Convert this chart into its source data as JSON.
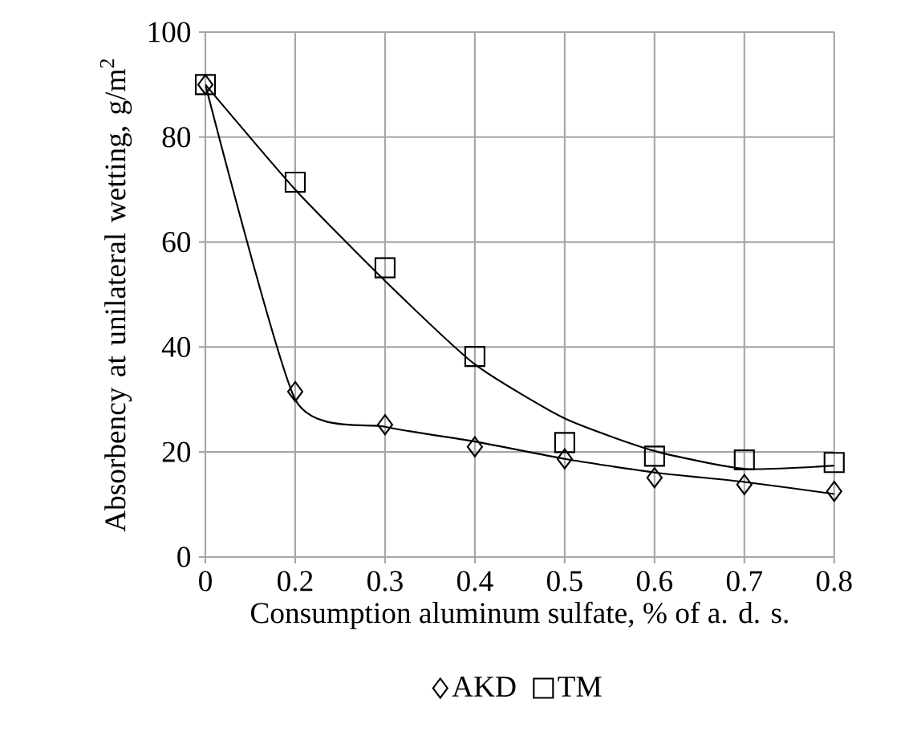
{
  "chart_data": {
    "type": "scatter",
    "xlabel": "Consumption aluminum sulfate, % of a. d. s.",
    "ylabel": "Absorbency at unilateral wetting, g/m$^{2}$",
    "categories": [
      "0",
      "0.2",
      "0.3",
      "0.4",
      "0.5",
      "0.6",
      "0.7",
      "0.8"
    ],
    "ylim": [
      0,
      100
    ],
    "yticks": [
      0,
      20,
      40,
      60,
      80,
      100
    ],
    "grid": true,
    "legend": "bottom",
    "series": [
      {
        "name": "AKD",
        "marker": "diamond",
        "color": "#000000",
        "values": [
          90,
          31.5,
          25.2,
          21.0,
          18.7,
          15.1,
          13.8,
          12.5
        ]
      },
      {
        "name": "TM",
        "marker": "square",
        "color": "#000000",
        "values": [
          90,
          71.4,
          55.1,
          38.2,
          21.8,
          19.2,
          18.5,
          18.0
        ]
      },
      {
        "type": "line",
        "color": "#000000",
        "values": [
          90,
          30,
          24.8,
          22,
          18.7,
          16.1,
          14.3,
          12
        ]
      },
      {
        "type": "line",
        "color": "#000000",
        "values": [
          90,
          70,
          52.6,
          36.7,
          26.4,
          20.2,
          16.8,
          17.4
        ]
      }
    ]
  }
}
